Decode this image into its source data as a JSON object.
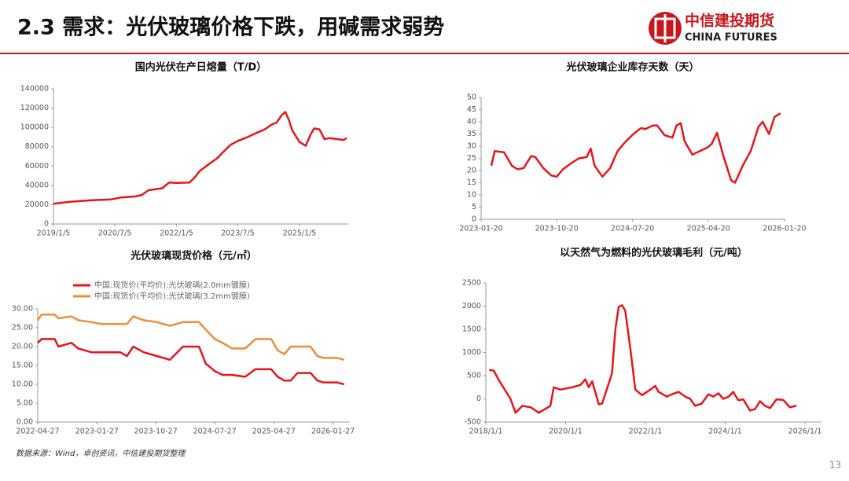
{
  "header": {
    "title": "2.3 需求：光伏玻璃价格下跌，用碱需求弱势",
    "logo_cn": "中信建投期货",
    "logo_en": "CHINA FUTURES"
  },
  "chart_data": [
    {
      "type": "line",
      "title": "国内光伏在产日熔量（T/D）",
      "color": "#e8141b",
      "x": [
        "2019/1/5",
        "2019/6/1",
        "2019/12/1",
        "2020/6/1",
        "2020/9/1",
        "2021/1/1",
        "2021/3/1",
        "2021/5/1",
        "2021/9/1",
        "2021/11/1",
        "2022/1/5",
        "2022/5/1",
        "2022/6/15",
        "2022/8/1",
        "2022/11/1",
        "2023/1/1",
        "2023/3/1",
        "2023/5/1",
        "2023/7/5",
        "2023/10/1",
        "2024/1/1",
        "2024/3/1",
        "2024/5/1",
        "2024/6/15",
        "2024/8/1",
        "2024/9/1",
        "2024/10/1",
        "2024/11/1",
        "2025/1/5",
        "2025/3/1",
        "2025/4/15",
        "2025/5/15",
        "2025/7/1",
        "2025/8/15",
        "2025/10/1",
        "2025/12/1",
        "2026/2/1",
        "2026/3/1"
      ],
      "values": [
        21000,
        23000,
        24500,
        25500,
        27500,
        28500,
        30000,
        35000,
        37000,
        43000,
        42500,
        43000,
        48000,
        55000,
        63000,
        68000,
        75000,
        82000,
        86000,
        90000,
        95000,
        98000,
        103000,
        105000,
        113000,
        116000,
        108000,
        97000,
        85000,
        81000,
        93000,
        99000,
        98000,
        88000,
        89000,
        88000,
        87000,
        89000
      ],
      "xlim": [
        "2019/1/5",
        "2026/3/15"
      ],
      "xticks": [
        "2019/1/5",
        "2020/7/5",
        "2022/1/5",
        "2023/7/5",
        "2025/1/5"
      ],
      "ylim": [
        0,
        140000
      ],
      "yticks": [
        0,
        20000,
        40000,
        60000,
        80000,
        100000,
        120000,
        140000
      ]
    },
    {
      "type": "line",
      "title": "光伏玻璃企业库存天数（天）",
      "color": "#e8141b",
      "x": [
        "2023-02-26",
        "2023-03-10",
        "2023-04-13",
        "2023-05-11",
        "2023-06-01",
        "2023-06-23",
        "2023-07-20",
        "2023-08-04",
        "2023-09-02",
        "2023-09-30",
        "2023-10-20",
        "2023-11-12",
        "2023-12-11",
        "2024-01-08",
        "2024-02-05",
        "2024-02-20",
        "2024-03-05",
        "2024-04-02",
        "2024-04-30",
        "2024-05-27",
        "2024-06-26",
        "2024-07-23",
        "2024-08-20",
        "2024-09-04",
        "2024-10-02",
        "2024-10-17",
        "2024-11-13",
        "2024-12-11",
        "2024-12-26",
        "2025-01-10",
        "2025-01-24",
        "2025-02-21",
        "2025-03-20",
        "2025-04-17",
        "2025-05-02",
        "2025-05-21",
        "2025-06-13",
        "2025-07-11",
        "2025-07-25",
        "2025-08-22",
        "2025-09-20",
        "2025-10-18",
        "2025-11-02",
        "2025-11-25",
        "2025-12-15",
        "2026-01-05"
      ],
      "values": [
        22,
        28,
        27.5,
        22,
        20.5,
        21,
        26,
        25.5,
        21,
        18,
        17.5,
        20.5,
        23,
        25,
        25.5,
        29,
        22,
        17.5,
        21,
        28,
        32,
        35,
        37.5,
        37,
        38.5,
        38.5,
        34.5,
        33.5,
        38.5,
        39.5,
        32,
        26.5,
        28,
        29.5,
        31,
        35.5,
        26,
        16,
        15,
        22,
        28,
        38,
        40,
        35,
        42,
        43.5
      ],
      "xlim": [
        "2023-01-20",
        "2026-01-20"
      ],
      "xticks": [
        "2023-01-20",
        "2023-10-20",
        "2024-07-20",
        "2025-04-20",
        "2026-01-20"
      ],
      "ylim": [
        0,
        50
      ],
      "yticks": [
        0,
        5,
        10,
        15,
        20,
        25,
        30,
        35,
        40,
        45,
        50
      ]
    },
    {
      "type": "line",
      "title": "光伏玻璃现货价格（元/㎡）",
      "legend": "upper left",
      "x": [
        "2022-04-27",
        "2022-05-15",
        "2022-07-15",
        "2022-08-01",
        "2022-10-01",
        "2022-11-01",
        "2023-01-01",
        "2023-02-15",
        "2023-05-15",
        "2023-06-15",
        "2023-07-15",
        "2023-09-01",
        "2023-11-01",
        "2024-01-01",
        "2024-03-01",
        "2024-05-15",
        "2024-06-15",
        "2024-07-27",
        "2024-09-01",
        "2024-10-15",
        "2024-12-15",
        "2025-02-01",
        "2025-04-15",
        "2025-05-15",
        "2025-06-15",
        "2025-07-15",
        "2025-08-15",
        "2025-10-15",
        "2025-11-15",
        "2025-12-15",
        "2026-02-15",
        "2026-03-20"
      ],
      "series": [
        {
          "name": "中国:现货价(平均价):光伏玻璃(2.0mm镀膜)",
          "color": "#e8141b",
          "values": [
            21,
            22,
            22,
            20,
            21,
            19.5,
            18.5,
            18.5,
            18.5,
            17.5,
            20,
            18.5,
            17.5,
            16.5,
            20,
            20,
            15.5,
            13.5,
            12.5,
            12.5,
            12,
            14,
            14,
            12,
            11,
            11,
            13,
            13,
            11,
            10.5,
            10.5,
            10
          ]
        },
        {
          "name": "中国:现货价(平均价):光伏玻璃(3.2mm镀膜)",
          "color": "#f08c3c",
          "values": [
            27,
            28.5,
            28.5,
            27.5,
            28,
            27,
            26.5,
            26,
            26,
            26,
            28,
            27,
            26.5,
            25.5,
            26.5,
            26.5,
            24.5,
            22,
            21,
            19.5,
            19.5,
            22,
            22,
            19,
            18,
            20,
            20,
            20,
            17.5,
            17,
            17,
            16.5
          ]
        }
      ],
      "xlim": [
        "2022-04-27",
        "2026-04-15"
      ],
      "xticks": [
        "2022-04-27",
        "2023-01-27",
        "2023-10-27",
        "2024-07-27",
        "2025-04-27",
        "2026-01-27"
      ],
      "ylim": [
        0,
        30
      ],
      "yticks": [
        {
          "value": 0,
          "label": "0.00"
        },
        {
          "value": 5,
          "label": "5.00"
        },
        {
          "value": 10,
          "label": "10.00"
        },
        {
          "value": 15,
          "label": "15.00"
        },
        {
          "value": 20,
          "label": "20.00"
        },
        {
          "value": 25,
          "label": "25.00"
        },
        {
          "value": 30,
          "label": "30.00"
        }
      ]
    },
    {
      "type": "line",
      "title": "以天然气为燃料的光伏玻璃毛利（元/吨）",
      "color": "#e8141b",
      "x": [
        "2018/2/1",
        "2018/3/15",
        "2018/5/1",
        "2018/8/15",
        "2018/10/1",
        "2018/12/1",
        "2019/2/15",
        "2019/5/1",
        "2019/8/15",
        "2019/9/15",
        "2019/11/15",
        "2020/3/1",
        "2020/5/15",
        "2020/7/1",
        "2020/8/1",
        "2020/9/1",
        "2020/11/1",
        "2020/12/1",
        "2021/3/1",
        "2021/4/1",
        "2021/5/1",
        "2021/6/1",
        "2021/7/1",
        "2021/8/15",
        "2021/10/1",
        "2021/12/1",
        "2022/2/15",
        "2022/4/1",
        "2022/5/1",
        "2022/7/15",
        "2022/9/1",
        "2022/11/1",
        "2023/1/1",
        "2023/2/15",
        "2023/4/1",
        "2023/6/1",
        "2023/8/1",
        "2023/9/15",
        "2023/11/1",
        "2023/12/15",
        "2024/2/1",
        "2024/3/15",
        "2024/5/1",
        "2024/6/15",
        "2024/8/15",
        "2024/10/1",
        "2024/11/15",
        "2025/1/1",
        "2025/2/15",
        "2025/4/15",
        "2025/6/15",
        "2025/8/15",
        "2025/10/15"
      ],
      "values": [
        620,
        610,
        400,
        0,
        -300,
        -150,
        -180,
        -300,
        -150,
        250,
        200,
        250,
        300,
        420,
        250,
        380,
        -120,
        -100,
        550,
        1500,
        1980,
        2020,
        1900,
        1100,
        200,
        80,
        200,
        280,
        150,
        50,
        100,
        150,
        50,
        0,
        -150,
        -100,
        100,
        50,
        120,
        0,
        50,
        150,
        -30,
        -10,
        -250,
        -220,
        -50,
        -150,
        -200,
        -10,
        -20,
        -180,
        -150
      ],
      "xlim": [
        "2018/1/1",
        "2026/6/1"
      ],
      "xticks": [
        "2018/1/1",
        "2020/1/1",
        "2022/1/1",
        "2024/1/1",
        "2026/1/1"
      ],
      "ylim": [
        -500,
        2500
      ],
      "yticks": [
        -500,
        0,
        500,
        1000,
        1500,
        2000,
        2500
      ]
    }
  ],
  "footer": {
    "source": "数据来源：Wind，卓创资讯，中信建投期货整理",
    "page": "13"
  }
}
